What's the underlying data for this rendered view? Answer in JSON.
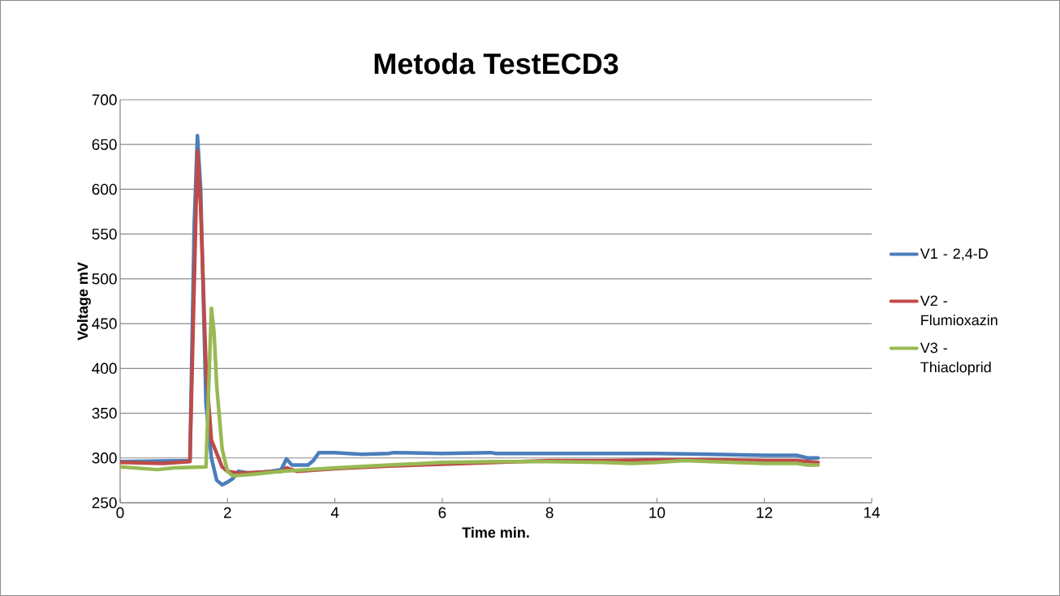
{
  "chart_data": {
    "type": "line",
    "title": "Metoda TestECD3",
    "xlabel": "Time min.",
    "ylabel": "Voltage mV",
    "xlim": [
      0,
      14
    ],
    "ylim": [
      250,
      700
    ],
    "xticks": [
      0,
      2,
      4,
      6,
      8,
      10,
      12,
      14
    ],
    "yticks": [
      250,
      300,
      350,
      400,
      450,
      500,
      550,
      600,
      650,
      700
    ],
    "grid": "y",
    "legend": "right",
    "marker": "none",
    "line_style": "solid",
    "series": [
      {
        "name": "V1 - 2,4-D",
        "color": "#4a7ebb",
        "x": [
          0,
          1.3,
          1.38,
          1.44,
          1.5,
          1.6,
          1.7,
          1.8,
          1.9,
          2.0,
          2.1,
          2.2,
          2.4,
          2.8,
          3.0,
          3.1,
          3.2,
          3.5,
          3.6,
          3.7,
          4.0,
          4.5,
          5.0,
          5.1,
          6,
          6.9,
          7,
          8,
          9,
          10,
          11,
          12,
          12.6,
          12.8,
          13
        ],
        "values": [
          296,
          297,
          560,
          660,
          600,
          360,
          300,
          275,
          270,
          273,
          277,
          285,
          283,
          285,
          287,
          299,
          292,
          292,
          297,
          306,
          306,
          304,
          305,
          306,
          305,
          306,
          305,
          305,
          305,
          305,
          304,
          303,
          303,
          300,
          300
        ]
      },
      {
        "name": "V2 - Flumioxazin",
        "color": "#be4b48",
        "x": [
          0,
          0.8,
          1.3,
          1.35,
          1.44,
          1.5,
          1.6,
          1.7,
          1.9,
          2.0,
          2.2,
          3.0,
          3.1,
          3.3,
          4,
          5,
          6,
          7,
          8,
          9,
          10,
          11,
          12,
          12.6,
          13
        ],
        "values": [
          295,
          294,
          296,
          420,
          643,
          580,
          400,
          320,
          290,
          285,
          283,
          285,
          289,
          285,
          288,
          291,
          293,
          295,
          297,
          297,
          298,
          298,
          297,
          297,
          295
        ]
      },
      {
        "name": "V3 - Thiacloprid",
        "color": "#98b954",
        "x": [
          0,
          0.7,
          1,
          1.6,
          1.65,
          1.7,
          1.75,
          1.8,
          1.9,
          2.0,
          2.1,
          2.5,
          3,
          4,
          5,
          6,
          7,
          8,
          9,
          9.5,
          10,
          10.5,
          11,
          12,
          12.6,
          12.8,
          13
        ],
        "values": [
          290,
          287,
          289,
          290,
          380,
          467,
          440,
          380,
          310,
          285,
          280,
          282,
          285,
          289,
          292,
          295,
          296,
          296,
          295,
          294,
          295,
          297,
          296,
          294,
          294,
          292,
          292
        ]
      }
    ]
  }
}
